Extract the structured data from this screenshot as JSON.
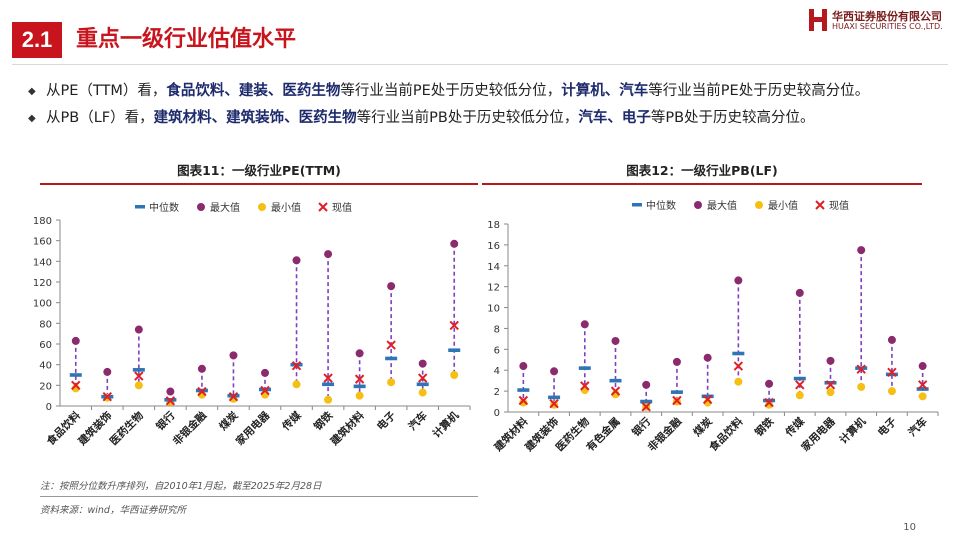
{
  "header": {
    "section_number": "2.1",
    "section_title": "重点一级行业估值水平",
    "logo_cn": "华西证券股份有限公司",
    "logo_en": "HUAXI SECURITIES CO.,LTD."
  },
  "bullets": [
    {
      "p1": "从PE（TTM）看，",
      "b1": "食品饮料、建装、医药生物",
      "p2": "等行业当前PE处于历史较低分位，",
      "b2": "计算机、汽车",
      "p3": "等行业当前PE处于历史较高分位。"
    },
    {
      "p1": "从PB（LF）看，",
      "b1": "建筑材料、建筑装饰、医药生物",
      "p2": "等行业当前PB处于历史较低分位，",
      "b2": "汽车、电子",
      "p3": "等PB处于历史较高分位。"
    }
  ],
  "footer": {
    "note": "注：按照分位数升序排列，自2010年1月起，截至2025年2月28日",
    "source": "资料来源：wind，华西证券研究所",
    "page": "10"
  },
  "colors": {
    "brand_red": "#c8151d",
    "median": "#2e75b6",
    "max": "#8b2a6c",
    "min": "#f5bf14",
    "current": "#e01f26",
    "range_line": "#7f3fbf"
  },
  "legend": [
    "中位数",
    "最大值",
    "最小值",
    "现值"
  ],
  "chart_data": [
    {
      "type": "scatter",
      "title": "图表11：一级行业PE(TTM)",
      "ylim": [
        0,
        180
      ],
      "yticks": [
        0,
        20,
        40,
        60,
        80,
        100,
        120,
        140,
        160,
        180
      ],
      "categories": [
        "食品饮料",
        "建筑装饰",
        "医药生物",
        "银行",
        "非银金融",
        "煤炭",
        "家用电器",
        "传媒",
        "钢铁",
        "建筑材料",
        "电子",
        "汽车",
        "计算机"
      ],
      "series": [
        {
          "name": "中位数",
          "values": [
            30,
            9,
            35,
            6,
            15,
            10,
            16,
            40,
            21,
            19,
            46,
            21,
            54
          ]
        },
        {
          "name": "最大值",
          "values": [
            63,
            33,
            74,
            14,
            36,
            49,
            32,
            141,
            147,
            51,
            116,
            41,
            157
          ]
        },
        {
          "name": "最小值",
          "values": [
            17,
            8,
            20,
            4,
            11,
            7,
            11,
            21,
            6,
            10,
            23,
            13,
            30
          ]
        },
        {
          "name": "现值",
          "values": [
            20,
            9,
            29,
            5,
            14,
            9,
            15,
            39,
            27,
            26,
            59,
            27,
            78
          ]
        }
      ]
    },
    {
      "type": "scatter",
      "title": "图表12：一级行业PB(LF)",
      "ylim": [
        0,
        18
      ],
      "yticks": [
        0,
        2,
        4,
        6,
        8,
        10,
        12,
        14,
        16,
        18
      ],
      "categories": [
        "建筑材料",
        "建筑装饰",
        "医药生物",
        "有色金属",
        "银行",
        "非银金融",
        "煤炭",
        "食品饮料",
        "钢铁",
        "传媒",
        "家用电器",
        "计算机",
        "电子",
        "汽车"
      ],
      "series": [
        {
          "name": "中位数",
          "values": [
            2.1,
            1.4,
            4.2,
            3.0,
            1.0,
            1.9,
            1.5,
            5.6,
            1.1,
            3.2,
            2.8,
            4.2,
            3.6,
            2.2
          ]
        },
        {
          "name": "最大值",
          "values": [
            4.4,
            3.9,
            8.4,
            6.8,
            2.6,
            4.8,
            5.2,
            12.6,
            2.7,
            11.4,
            4.9,
            15.5,
            6.9,
            4.4
          ]
        },
        {
          "name": "最小值",
          "values": [
            0.9,
            0.7,
            2.1,
            1.7,
            0.5,
            1.0,
            0.9,
            2.9,
            0.7,
            1.6,
            1.9,
            2.4,
            2.0,
            1.5
          ]
        },
        {
          "name": "现值",
          "values": [
            1.1,
            0.8,
            2.5,
            2.0,
            0.5,
            1.1,
            1.2,
            4.4,
            0.9,
            2.6,
            2.6,
            4.1,
            3.8,
            2.6
          ]
        }
      ]
    }
  ]
}
